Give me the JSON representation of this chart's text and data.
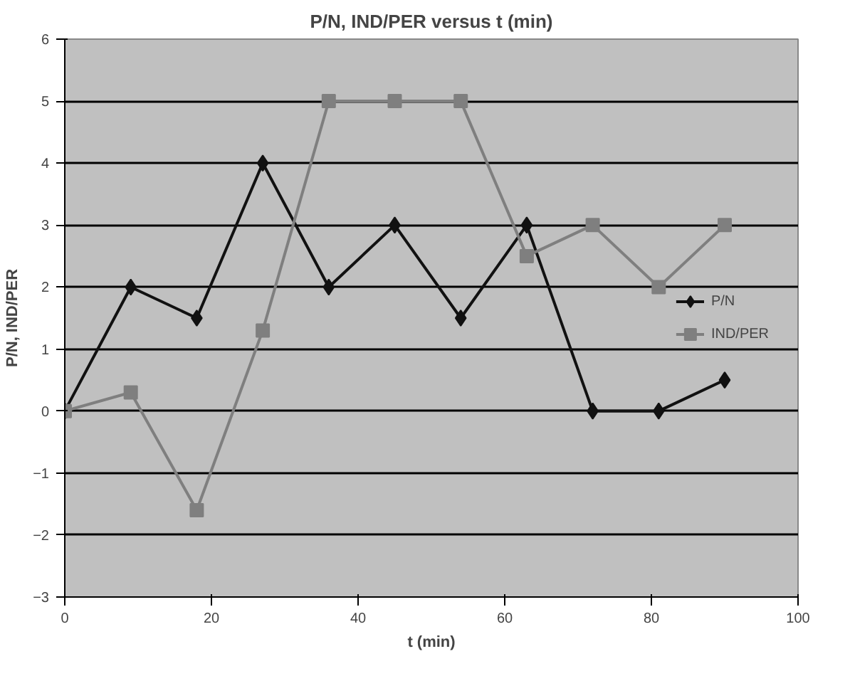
{
  "chart_data": {
    "type": "line",
    "title": "P/N, IND/PER versus t (min)",
    "xlabel": "t (min)",
    "ylabel": "P/N, IND/PER",
    "x": [
      0,
      9,
      18,
      27,
      36,
      45,
      54,
      63,
      72,
      81,
      90
    ],
    "series": [
      {
        "name": "P/N",
        "color": "#111111",
        "marker": "diamond",
        "values": [
          0,
          2,
          1.5,
          4,
          2,
          3,
          1.5,
          3,
          0,
          0,
          0.5
        ]
      },
      {
        "name": "IND/PER",
        "color": "#7f7f7f",
        "marker": "square",
        "values": [
          0,
          0.3,
          -1.6,
          1.3,
          5,
          5,
          5,
          2.5,
          3,
          2,
          3
        ]
      }
    ],
    "xlim": [
      0,
      100
    ],
    "xticks": [
      0,
      20,
      40,
      60,
      80,
      100
    ],
    "ylim": [
      -3,
      6
    ],
    "yticks": [
      -3,
      -2,
      -1,
      0,
      1,
      2,
      3,
      4,
      5,
      6
    ],
    "grid": "y",
    "legend": "right"
  }
}
